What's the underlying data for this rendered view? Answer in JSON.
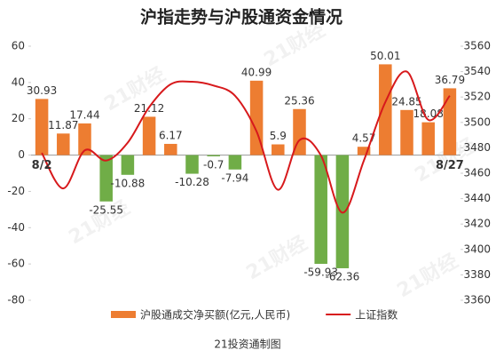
{
  "chart_data": {
    "type": "bar_line",
    "title": "沪指走势与沪股通资金情况",
    "footer": "21投资通制图",
    "watermark": "21财经",
    "categories": [
      "8/2",
      null,
      null,
      null,
      null,
      null,
      null,
      null,
      null,
      null,
      null,
      null,
      null,
      null,
      null,
      null,
      null,
      null,
      null,
      "8/27"
    ],
    "series": [
      {
        "name": "沪股通成交净买额(亿元,人民币)",
        "type": "bar",
        "color": "#ed7d31",
        "negative_color": "#70ad47",
        "values": [
          30.93,
          11.87,
          17.44,
          -25.55,
          -10.88,
          21.12,
          6.17,
          -10.28,
          -0.7,
          -7.94,
          40.99,
          5.9,
          25.36,
          -59.93,
          -62.36,
          4.57,
          50.01,
          24.85,
          18.08,
          36.79
        ]
      },
      {
        "name": "上证指数",
        "type": "line",
        "axis": "y2",
        "color": "#d7191c",
        "values": [
          3476,
          3448,
          3478,
          3470,
          3484,
          3512,
          3530,
          3532,
          3529,
          3521,
          3493,
          3447,
          3486,
          3474,
          3429,
          3470,
          3516,
          3540,
          3502,
          3521
        ]
      }
    ],
    "ylim": [
      -80,
      60
    ],
    "yticks": [
      -80,
      -60,
      -40,
      -20,
      0,
      20,
      40,
      60
    ],
    "y2lim": [
      3360,
      3560
    ],
    "y2ticks": [
      3360,
      3380,
      3400,
      3420,
      3440,
      3460,
      3480,
      3500,
      3520,
      3540,
      3560
    ]
  }
}
